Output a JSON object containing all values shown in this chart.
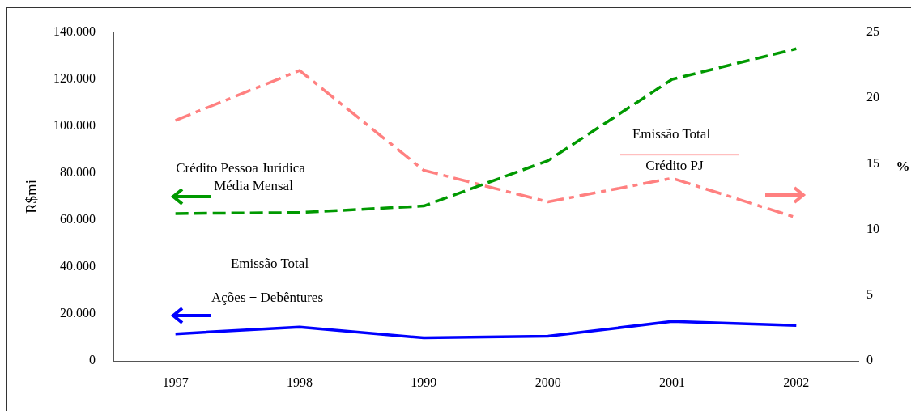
{
  "chart_data": {
    "type": "line",
    "categories": [
      "1997",
      "1998",
      "1999",
      "2000",
      "2001",
      "2002"
    ],
    "ylabel": "R$mi",
    "y2label": "%",
    "ylim": [
      0,
      140000
    ],
    "yticks": [
      {
        "value": 0,
        "label": "0"
      },
      {
        "value": 20000,
        "label": "20.000"
      },
      {
        "value": 40000,
        "label": "40.000"
      },
      {
        "value": 60000,
        "label": "60.000"
      },
      {
        "value": 80000,
        "label": "80.000"
      },
      {
        "value": 100000,
        "label": "100.000"
      },
      {
        "value": 120000,
        "label": "120.000"
      },
      {
        "value": 140000,
        "label": "140.000"
      }
    ],
    "y2lim": [
      0,
      25
    ],
    "y2ticks": [
      0,
      5,
      10,
      15,
      20,
      25
    ],
    "series": [
      {
        "color": "#0000ff",
        "line_style": "solid",
        "values": [
          11500,
          14400,
          9800,
          10500,
          16800,
          15100
        ]
      },
      {
        "color": "#009900",
        "line_style": "dashed",
        "values": [
          62800,
          63200,
          66000,
          85300,
          120000,
          133000
        ]
      },
      {
        "color": "#ff8080",
        "line_style": "dashdot",
        "axis": "y2",
        "values": [
          18.3,
          22.1,
          14.5,
          12.1,
          13.9,
          10.9
        ]
      }
    ],
    "annotations": [
      "Crédito Pessoa Jurídica",
      "Média Mensal",
      "Emissão Total",
      "Ações + Debêntures",
      "Emissão Total",
      "Crédito PJ"
    ],
    "grid": false,
    "legend": false,
    "marker": "none"
  }
}
